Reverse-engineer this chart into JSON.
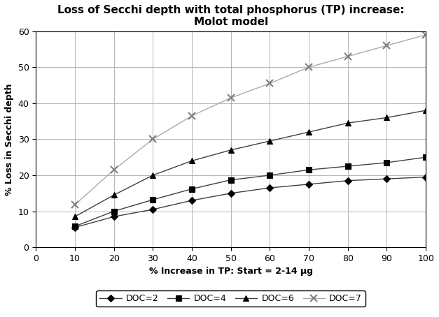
{
  "title": "Loss of Secchi depth with total phosphorus (TP) increase:\nMolot model",
  "xlabel": "% Increase in TP: Start = 2-14 μg",
  "ylabel": "% Loss in Secchi depth",
  "x": [
    10,
    20,
    30,
    40,
    50,
    60,
    70,
    80,
    90,
    100
  ],
  "series": [
    {
      "label": "DOC=2",
      "line_color": "#404040",
      "marker": "D",
      "markersize": 5,
      "marker_fill": "#000000",
      "marker_edge": "#000000",
      "values": [
        5.5,
        8.5,
        10.5,
        13.0,
        15.0,
        16.5,
        17.5,
        18.5,
        19.0,
        19.5
      ]
    },
    {
      "label": "DOC=4",
      "line_color": "#404040",
      "marker": "s",
      "markersize": 6,
      "marker_fill": "#000000",
      "marker_edge": "#000000",
      "values": [
        5.8,
        10.0,
        13.2,
        16.2,
        18.7,
        20.0,
        21.5,
        22.5,
        23.5,
        25.0
      ]
    },
    {
      "label": "DOC=6",
      "line_color": "#404040",
      "marker": "^",
      "markersize": 6,
      "marker_fill": "#000000",
      "marker_edge": "#000000",
      "values": [
        8.5,
        14.5,
        20.0,
        24.0,
        27.0,
        29.5,
        32.0,
        34.5,
        36.0,
        38.0
      ]
    },
    {
      "label": "DOC=7",
      "line_color": "#aaaaaa",
      "marker": "x",
      "markersize": 7,
      "marker_fill": "#808080",
      "marker_edge": "#808080",
      "values": [
        11.8,
        21.5,
        30.0,
        36.5,
        41.5,
        45.5,
        50.0,
        53.0,
        56.0,
        59.0
      ]
    }
  ],
  "xlim": [
    0,
    100
  ],
  "ylim": [
    0,
    60
  ],
  "xticks": [
    0,
    10,
    20,
    30,
    40,
    50,
    60,
    70,
    80,
    90,
    100
  ],
  "yticks": [
    0,
    10,
    20,
    30,
    40,
    50,
    60
  ],
  "grid": true,
  "title_fontsize": 11,
  "label_fontsize": 9,
  "tick_fontsize": 9,
  "linewidth": 1.0,
  "legend_ncol": 4,
  "legend_fontsize": 9,
  "figsize": [
    6.27,
    4.54
  ],
  "dpi": 100
}
